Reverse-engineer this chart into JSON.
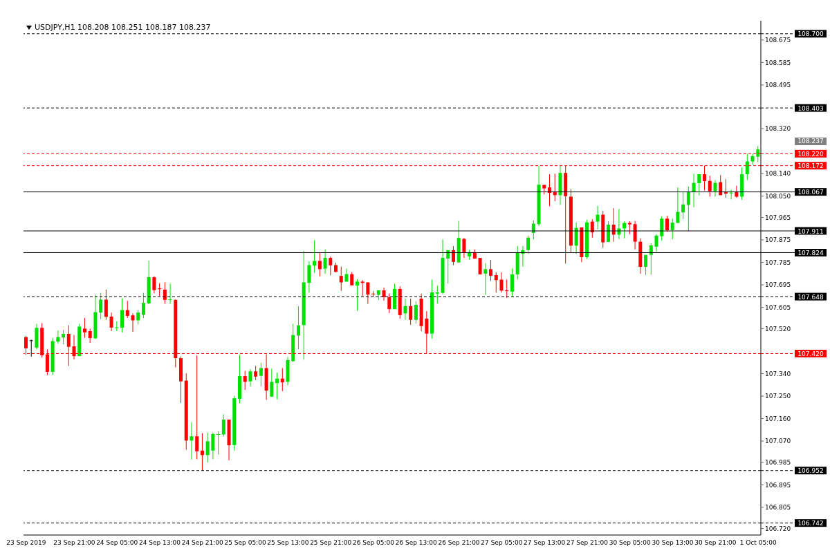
{
  "chart_data": {
    "type": "candlestick",
    "title": "USDJPY,H1  108.208 108.251 108.187 108.237",
    "categories": [
      "23 Sep 2019",
      null,
      null,
      null,
      null,
      null,
      null,
      null,
      null,
      "23 Sep 21:00",
      null,
      null,
      null,
      null,
      null,
      null,
      null,
      "24 Sep 05:00",
      null,
      null,
      null,
      null,
      null,
      null,
      null,
      "24 Sep 13:00",
      null,
      null,
      null,
      null,
      null,
      null,
      null,
      "24 Sep 21:00",
      null,
      null,
      null,
      null,
      null,
      null,
      null,
      "25 Sep 05:00",
      null,
      null,
      null,
      null,
      null,
      null,
      null,
      "25 Sep 13:00",
      null,
      null,
      null,
      null,
      null,
      null,
      null,
      "25 Sep 21:00",
      null,
      null,
      null,
      null,
      null,
      null,
      null,
      "26 Sep 05:00",
      null,
      null,
      null,
      null,
      null,
      null,
      null,
      "26 Sep 13:00",
      null,
      null,
      null,
      null,
      null,
      null,
      null,
      "26 Sep 21:00",
      null,
      null,
      null,
      null,
      null,
      null,
      null,
      "27 Sep 05:00",
      null,
      null,
      null,
      null,
      null,
      null,
      null,
      "27 Sep 13:00",
      null,
      null,
      null,
      null,
      null,
      null,
      null,
      "27 Sep 21:00",
      null,
      null,
      null,
      null,
      null,
      null,
      null,
      "30 Sep 05:00",
      null,
      null,
      null,
      null,
      null,
      null,
      null,
      "30 Sep 13:00",
      null,
      null,
      null,
      null,
      null,
      null,
      null,
      "30 Sep 21:00",
      null,
      null,
      null,
      null,
      null,
      null,
      null,
      "1 Oct 05:00"
    ],
    "ohlc": [
      [
        107.486,
        107.491,
        107.415,
        107.441
      ],
      [
        107.473,
        107.476,
        107.408,
        107.473
      ],
      [
        107.444,
        107.539,
        107.438,
        107.523
      ],
      [
        107.523,
        107.542,
        107.404,
        107.413
      ],
      [
        107.417,
        107.437,
        107.334,
        107.347
      ],
      [
        107.347,
        107.483,
        107.334,
        107.47
      ],
      [
        107.468,
        107.512,
        107.46,
        107.486
      ],
      [
        107.484,
        107.515,
        107.458,
        107.499
      ],
      [
        107.499,
        107.533,
        107.371,
        107.447
      ],
      [
        107.449,
        107.494,
        107.397,
        107.41
      ],
      [
        107.41,
        107.539,
        107.41,
        107.528
      ],
      [
        107.52,
        107.563,
        107.483,
        107.505
      ],
      [
        107.51,
        107.52,
        107.463,
        107.482
      ],
      [
        107.481,
        107.655,
        107.478,
        107.586
      ],
      [
        107.584,
        107.663,
        107.558,
        107.636
      ],
      [
        107.636,
        107.676,
        107.555,
        107.567
      ],
      [
        107.568,
        107.584,
        107.51,
        107.524
      ],
      [
        107.523,
        107.549,
        107.51,
        107.525
      ],
      [
        107.524,
        107.642,
        107.504,
        107.594
      ],
      [
        107.594,
        107.631,
        107.563,
        107.571
      ],
      [
        107.573,
        107.581,
        107.507,
        107.553
      ],
      [
        107.553,
        107.595,
        107.536,
        107.584
      ],
      [
        107.575,
        107.663,
        107.562,
        107.623
      ],
      [
        107.621,
        107.792,
        107.618,
        107.726
      ],
      [
        107.726,
        107.729,
        107.661,
        107.674
      ],
      [
        107.681,
        107.702,
        107.65,
        107.678
      ],
      [
        107.676,
        107.705,
        107.619,
        107.635
      ],
      [
        107.635,
        107.7,
        107.619,
        107.637
      ],
      [
        107.635,
        107.637,
        107.365,
        107.402
      ],
      [
        107.402,
        107.409,
        107.223,
        107.309
      ],
      [
        107.312,
        107.341,
        107.035,
        107.072
      ],
      [
        107.072,
        107.146,
        106.996,
        107.089
      ],
      [
        107.089,
        107.413,
        106.997,
        107.029
      ],
      [
        107.032,
        107.102,
        106.952,
        107.014
      ],
      [
        107.014,
        107.104,
        106.984,
        107.069
      ],
      [
        107.032,
        107.104,
        106.997,
        107.098
      ],
      [
        107.095,
        107.109,
        107.017,
        107.098
      ],
      [
        107.096,
        107.177,
        107.088,
        107.156
      ],
      [
        107.156,
        107.156,
        106.993,
        107.053
      ],
      [
        107.054,
        107.251,
        107.032,
        107.241
      ],
      [
        107.239,
        107.415,
        107.221,
        107.33
      ],
      [
        107.33,
        107.351,
        107.275,
        107.307
      ],
      [
        107.309,
        107.357,
        107.288,
        107.349
      ],
      [
        107.349,
        107.371,
        107.314,
        107.328
      ],
      [
        107.331,
        107.383,
        107.29,
        107.362
      ],
      [
        107.362,
        107.417,
        107.235,
        107.272
      ],
      [
        107.248,
        107.36,
        107.248,
        107.307
      ],
      [
        107.302,
        107.344,
        107.237,
        107.32
      ],
      [
        107.32,
        107.362,
        107.27,
        107.305
      ],
      [
        107.307,
        107.406,
        107.293,
        107.394
      ],
      [
        107.39,
        107.539,
        107.386,
        107.494
      ],
      [
        107.492,
        107.61,
        107.437,
        107.533
      ],
      [
        107.534,
        107.832,
        107.396,
        107.705
      ],
      [
        107.703,
        107.789,
        107.664,
        107.774
      ],
      [
        107.772,
        107.874,
        107.743,
        107.791
      ],
      [
        107.791,
        107.824,
        107.729,
        107.758
      ],
      [
        107.76,
        107.837,
        107.74,
        107.803
      ],
      [
        107.803,
        107.808,
        107.733,
        107.773
      ],
      [
        107.774,
        107.784,
        107.745,
        107.747
      ],
      [
        107.731,
        107.768,
        107.671,
        107.705
      ],
      [
        107.708,
        107.76,
        107.708,
        107.738
      ],
      [
        107.738,
        107.745,
        107.693,
        107.693
      ],
      [
        107.692,
        107.718,
        107.591,
        107.708
      ],
      [
        107.708,
        107.714,
        107.65,
        107.703
      ],
      [
        107.705,
        107.705,
        107.619,
        107.656
      ],
      [
        107.66,
        107.67,
        107.648,
        107.657
      ],
      [
        107.655,
        107.673,
        107.635,
        107.673
      ],
      [
        107.673,
        107.684,
        107.632,
        107.646
      ],
      [
        107.646,
        107.661,
        107.582,
        107.598
      ],
      [
        107.598,
        107.699,
        107.598,
        107.679
      ],
      [
        107.679,
        107.689,
        107.56,
        107.574
      ],
      [
        107.581,
        107.64,
        107.555,
        107.61
      ],
      [
        107.61,
        107.64,
        107.535,
        107.555
      ],
      [
        107.555,
        107.63,
        107.54,
        107.615
      ],
      [
        107.64,
        107.66,
        107.51,
        107.53
      ],
      [
        107.56,
        107.59,
        107.42,
        107.5
      ],
      [
        107.5,
        107.716,
        107.48,
        107.665
      ],
      [
        107.66,
        107.692,
        107.62,
        107.665
      ],
      [
        107.663,
        107.877,
        107.658,
        107.803
      ],
      [
        107.8,
        107.834,
        107.7,
        107.834
      ],
      [
        107.834,
        107.85,
        107.774,
        107.787
      ],
      [
        107.785,
        107.951,
        107.785,
        107.883
      ],
      [
        107.879,
        107.883,
        107.803,
        107.826
      ],
      [
        107.809,
        107.835,
        107.796,
        107.826
      ],
      [
        107.826,
        107.837,
        107.8,
        107.8
      ],
      [
        107.803,
        107.803,
        107.737,
        107.737
      ],
      [
        107.74,
        107.782,
        107.655,
        107.758
      ],
      [
        107.758,
        107.795,
        107.711,
        107.731
      ],
      [
        107.734,
        107.745,
        107.664,
        107.714
      ],
      [
        107.716,
        107.745,
        107.664,
        107.672
      ],
      [
        107.673,
        107.716,
        107.643,
        107.67
      ],
      [
        107.668,
        107.76,
        107.648,
        107.737
      ],
      [
        107.737,
        107.85,
        107.716,
        107.824
      ],
      [
        107.819,
        107.85,
        107.768,
        107.834
      ],
      [
        107.834,
        107.892,
        107.819,
        107.884
      ],
      [
        107.903,
        107.953,
        107.877,
        107.94
      ],
      [
        107.938,
        108.172,
        107.931,
        108.096
      ],
      [
        108.095,
        108.095,
        108.057,
        108.081
      ],
      [
        108.085,
        108.138,
        108.01,
        108.063
      ],
      [
        108.066,
        108.14,
        108.03,
        108.054
      ],
      [
        108.054,
        108.171,
        108.015,
        108.143
      ],
      [
        108.143,
        108.171,
        107.78,
        108.05
      ],
      [
        108.048,
        108.079,
        107.824,
        107.852
      ],
      [
        107.852,
        107.945,
        107.819,
        107.923
      ],
      [
        107.925,
        107.925,
        107.786,
        107.806
      ],
      [
        107.806,
        107.956,
        107.799,
        107.945
      ],
      [
        107.948,
        107.958,
        107.884,
        107.905
      ],
      [
        107.948,
        108.011,
        107.918,
        107.976
      ],
      [
        107.976,
        107.991,
        107.843,
        107.865
      ],
      [
        107.867,
        107.95,
        107.867,
        107.936
      ],
      [
        107.936,
        108.002,
        107.868,
        107.896
      ],
      [
        107.896,
        107.999,
        107.878,
        107.921
      ],
      [
        107.921,
        107.949,
        107.881,
        107.943
      ],
      [
        107.943,
        107.95,
        107.898,
        107.937
      ],
      [
        107.938,
        107.951,
        107.837,
        107.868
      ],
      [
        107.868,
        107.881,
        107.74,
        107.767
      ],
      [
        107.767,
        107.815,
        107.735,
        107.815
      ],
      [
        107.815,
        107.862,
        107.736,
        107.853
      ],
      [
        107.848,
        107.898,
        107.828,
        107.892
      ],
      [
        107.89,
        107.969,
        107.872,
        107.96
      ],
      [
        107.96,
        107.971,
        107.907,
        107.914
      ],
      [
        107.914,
        107.96,
        107.877,
        107.944
      ],
      [
        107.943,
        108.085,
        107.943,
        107.987
      ],
      [
        107.985,
        108.066,
        107.958,
        108.017
      ],
      [
        108.015,
        108.088,
        107.911,
        108.066
      ],
      [
        108.066,
        108.14,
        108.006,
        108.103
      ],
      [
        108.102,
        108.138,
        108.053,
        108.138
      ],
      [
        108.138,
        108.172,
        108.073,
        108.11
      ],
      [
        108.111,
        108.132,
        108.048,
        108.07
      ],
      [
        108.07,
        108.114,
        108.048,
        108.103
      ],
      [
        108.106,
        108.134,
        108.054,
        108.054
      ],
      [
        108.066,
        108.118,
        108.044,
        108.06
      ],
      [
        108.062,
        108.076,
        108.037,
        108.064
      ],
      [
        108.066,
        108.092,
        108.044,
        108.048
      ],
      [
        108.048,
        108.165,
        108.035,
        108.138
      ],
      [
        108.138,
        108.22,
        108.114,
        108.189
      ],
      [
        108.189,
        108.22,
        108.176,
        108.21
      ],
      [
        108.208,
        108.251,
        108.187,
        108.237
      ]
    ],
    "ylim": [
      106.694,
      108.752
    ],
    "yticks": [
      {
        "value": 108.675,
        "label": "108.675"
      },
      {
        "value": 108.585,
        "label": "108.585"
      },
      {
        "value": 108.495,
        "label": "108.495"
      },
      {
        "value": 108.32,
        "label": "108.320"
      },
      {
        "value": 108.14,
        "label": "108.140"
      },
      {
        "value": 108.05,
        "label": "108.050"
      },
      {
        "value": 107.965,
        "label": "107.965"
      },
      {
        "value": 107.875,
        "label": "107.875"
      },
      {
        "value": 107.785,
        "label": "107.785"
      },
      {
        "value": 107.695,
        "label": "107.695"
      },
      {
        "value": 107.605,
        "label": "107.605"
      },
      {
        "value": 107.52,
        "label": "107.520"
      },
      {
        "value": 107.34,
        "label": "107.340"
      },
      {
        "value": 107.25,
        "label": "107.250"
      },
      {
        "value": 107.16,
        "label": "107.160"
      },
      {
        "value": 107.07,
        "label": "107.070"
      },
      {
        "value": 106.985,
        "label": "106.985"
      },
      {
        "value": 106.895,
        "label": "106.895"
      },
      {
        "value": 106.805,
        "label": "106.805"
      },
      {
        "value": 106.72,
        "label": "106.720"
      }
    ],
    "ref_lines": [
      {
        "axis": "y",
        "value": 108.7,
        "label": "108.700",
        "color": "#000000",
        "line_style": "dashed"
      },
      {
        "axis": "y",
        "value": 108.403,
        "label": "108.403",
        "color": "#000000",
        "line_style": "dashed"
      },
      {
        "axis": "y",
        "value": 108.22,
        "label": "108.220",
        "color": "#ff0000",
        "line_style": "dashed"
      },
      {
        "axis": "y",
        "value": 108.172,
        "label": "108.172",
        "color": "#ff0000",
        "line_style": "dashed"
      },
      {
        "axis": "y",
        "value": 108.067,
        "label": "108.067",
        "color": "#000000",
        "line_style": "solid"
      },
      {
        "axis": "y",
        "value": 107.911,
        "label": "107.911",
        "color": "#000000",
        "line_style": "solid"
      },
      {
        "axis": "y",
        "value": 107.824,
        "label": "107.824",
        "color": "#000000",
        "line_style": "solid"
      },
      {
        "axis": "y",
        "value": 107.648,
        "label": "107.648",
        "color": "#000000",
        "line_style": "dashed"
      },
      {
        "axis": "y",
        "value": 107.42,
        "label": "107.420",
        "color": "#ff0000",
        "line_style": "dashed"
      },
      {
        "axis": "y",
        "value": 106.952,
        "label": "106.952",
        "color": "#000000",
        "line_style": "dashed"
      },
      {
        "axis": "y",
        "value": 106.742,
        "label": "106.742",
        "color": "#000000",
        "line_style": "dashed"
      }
    ],
    "annotations": [
      "108.237"
    ],
    "grid": false,
    "legend": false
  }
}
